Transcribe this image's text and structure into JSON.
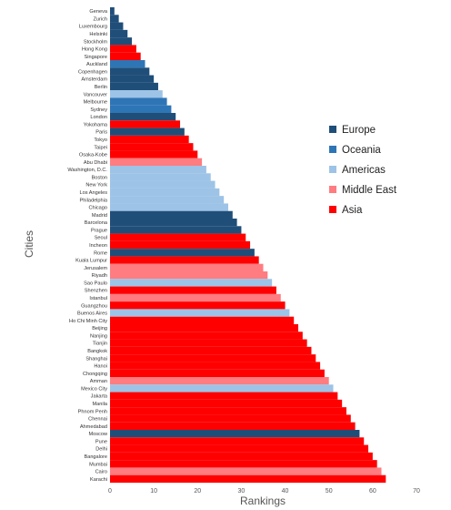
{
  "chart_data": {
    "type": "bar",
    "orientation": "horizontal",
    "xlabel": "Rankings",
    "ylabel": "Cities",
    "xlim": [
      0,
      70
    ],
    "xticks": [
      0,
      10,
      20,
      30,
      40,
      50,
      60,
      70
    ],
    "grid": false,
    "legend_position": "right",
    "series": [
      {
        "name": "Europe",
        "color": "#1f4e79"
      },
      {
        "name": "Oceania",
        "color": "#2e75b6"
      },
      {
        "name": "Americas",
        "color": "#9dc3e6"
      },
      {
        "name": "Middle East",
        "color": "#ff7c80"
      },
      {
        "name": "Asia",
        "color": "#ff0000"
      }
    ],
    "bars": [
      {
        "city": "Geneva",
        "value": 1,
        "region": "Europe"
      },
      {
        "city": "Zurich",
        "value": 2,
        "region": "Europe"
      },
      {
        "city": "Luxembourg",
        "value": 3,
        "region": "Europe"
      },
      {
        "city": "Helsinki",
        "value": 4,
        "region": "Europe"
      },
      {
        "city": "Stockholm",
        "value": 5,
        "region": "Europe"
      },
      {
        "city": "Hong Kong",
        "value": 6,
        "region": "Asia"
      },
      {
        "city": "Singapore",
        "value": 7,
        "region": "Asia"
      },
      {
        "city": "Auckland",
        "value": 8,
        "region": "Oceania"
      },
      {
        "city": "Copenhagen",
        "value": 9,
        "region": "Europe"
      },
      {
        "city": "Amsterdam",
        "value": 10,
        "region": "Europe"
      },
      {
        "city": "Berlin",
        "value": 11,
        "region": "Europe"
      },
      {
        "city": "Vancouver",
        "value": 12,
        "region": "Americas"
      },
      {
        "city": "Melbourne",
        "value": 13,
        "region": "Oceania"
      },
      {
        "city": "Sydney",
        "value": 14,
        "region": "Oceania"
      },
      {
        "city": "London",
        "value": 15,
        "region": "Europe"
      },
      {
        "city": "Yokohama",
        "value": 16,
        "region": "Asia"
      },
      {
        "city": "Paris",
        "value": 17,
        "region": "Europe"
      },
      {
        "city": "Tokyo",
        "value": 18,
        "region": "Asia"
      },
      {
        "city": "Taipei",
        "value": 19,
        "region": "Asia"
      },
      {
        "city": "Osaka-Kobe",
        "value": 20,
        "region": "Asia"
      },
      {
        "city": "Abu Dhabi",
        "value": 21,
        "region": "Middle East"
      },
      {
        "city": "Washington, D.C.",
        "value": 22,
        "region": "Americas"
      },
      {
        "city": "Boston",
        "value": 23,
        "region": "Americas"
      },
      {
        "city": "New York",
        "value": 24,
        "region": "Americas"
      },
      {
        "city": "Los Angeles",
        "value": 25,
        "region": "Americas"
      },
      {
        "city": "Philadelphia",
        "value": 26,
        "region": "Americas"
      },
      {
        "city": "Chicago",
        "value": 27,
        "region": "Americas"
      },
      {
        "city": "Madrid",
        "value": 28,
        "region": "Europe"
      },
      {
        "city": "Barcelona",
        "value": 29,
        "region": "Europe"
      },
      {
        "city": "Prague",
        "value": 30,
        "region": "Europe"
      },
      {
        "city": "Seoul",
        "value": 31,
        "region": "Asia"
      },
      {
        "city": "Incheon",
        "value": 32,
        "region": "Asia"
      },
      {
        "city": "Rome",
        "value": 33,
        "region": "Europe"
      },
      {
        "city": "Kuala Lumpur",
        "value": 34,
        "region": "Asia"
      },
      {
        "city": "Jerusalem",
        "value": 35,
        "region": "Middle East"
      },
      {
        "city": "Riyadh",
        "value": 36,
        "region": "Middle East"
      },
      {
        "city": "Sao Paulo",
        "value": 37,
        "region": "Americas"
      },
      {
        "city": "Shenzhen",
        "value": 38,
        "region": "Asia"
      },
      {
        "city": "Istanbul",
        "value": 39,
        "region": "Middle East"
      },
      {
        "city": "Guangzhou",
        "value": 40,
        "region": "Asia"
      },
      {
        "city": "Buenos Aires",
        "value": 41,
        "region": "Americas"
      },
      {
        "city": "Ho Chi Minh City",
        "value": 42,
        "region": "Asia"
      },
      {
        "city": "Beijing",
        "value": 43,
        "region": "Asia"
      },
      {
        "city": "Nanjing",
        "value": 44,
        "region": "Asia"
      },
      {
        "city": "Tianjin",
        "value": 45,
        "region": "Asia"
      },
      {
        "city": "Bangkok",
        "value": 46,
        "region": "Asia"
      },
      {
        "city": "Shanghai",
        "value": 47,
        "region": "Asia"
      },
      {
        "city": "Hanoi",
        "value": 48,
        "region": "Asia"
      },
      {
        "city": "Chongqing",
        "value": 49,
        "region": "Asia"
      },
      {
        "city": "Amman",
        "value": 50,
        "region": "Middle East"
      },
      {
        "city": "Mexico City",
        "value": 51,
        "region": "Americas"
      },
      {
        "city": "Jakarta",
        "value": 52,
        "region": "Asia"
      },
      {
        "city": "Manila",
        "value": 53,
        "region": "Asia"
      },
      {
        "city": "Phnom Penh",
        "value": 54,
        "region": "Asia"
      },
      {
        "city": "Chennai",
        "value": 55,
        "region": "Asia"
      },
      {
        "city": "Ahmedabad",
        "value": 56,
        "region": "Asia"
      },
      {
        "city": "Moscow",
        "value": 57,
        "region": "Europe"
      },
      {
        "city": "Pune",
        "value": 58,
        "region": "Asia"
      },
      {
        "city": "Delhi",
        "value": 59,
        "region": "Asia"
      },
      {
        "city": "Bangalore",
        "value": 60,
        "region": "Asia"
      },
      {
        "city": "Mumbai",
        "value": 61,
        "region": "Asia"
      },
      {
        "city": "Cairo",
        "value": 62,
        "region": "Middle East"
      },
      {
        "city": "Karachi",
        "value": 63,
        "region": "Asia"
      }
    ]
  }
}
